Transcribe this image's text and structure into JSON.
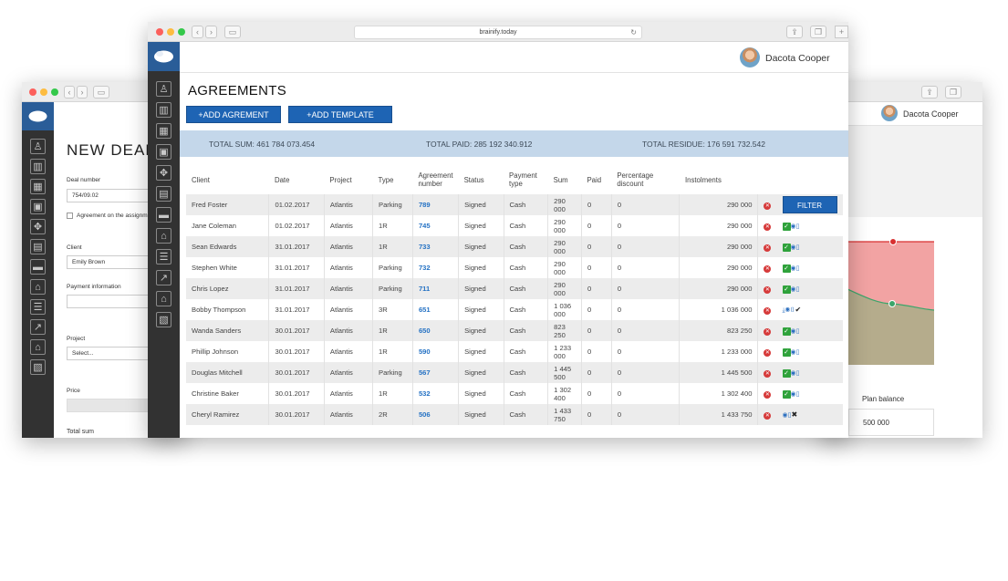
{
  "browser": {
    "url": "brainify.today"
  },
  "user": {
    "name": "Dacota Cooper"
  },
  "left_window": {
    "title": "NEW DEAL",
    "deal_number_label": "Deal number",
    "deal_number_value": "754/09.02",
    "agreement_checkbox_label": "Agreement on the assignm",
    "client_label": "Client",
    "client_value": "Emily Brown",
    "payment_info_label": "Payment information",
    "project_label": "Project",
    "project_placeholder": "Select...",
    "price_label": "Price",
    "total_sum_label": "Total sum"
  },
  "right_window": {
    "plan_balance_label": "Plan balance",
    "plan_balance_value": "500 000"
  },
  "main": {
    "title": "AGREEMENTS",
    "add_agreement": "+ADD AGREMENT",
    "add_template": "+ADD TEMPLATE",
    "total_sum": "TOTAL SUM: 461 784 073.454",
    "total_paid": "TOTAL PAID: 285 192 340.912",
    "total_residue": "TOTAL RESIDUE: 176 591 732.542",
    "filter_label": "FILTER",
    "columns": [
      "Client",
      "Date",
      "Project",
      "Type",
      "Agreement number",
      "Status",
      "Payment type",
      "Sum",
      "Paid",
      "Percentage discount",
      "Instolments"
    ],
    "rows": [
      {
        "client": "Fred Foster",
        "date": "01.02.2017",
        "project": "Atlantis",
        "type": "Parking",
        "number": "789",
        "status": "Signed",
        "payment": "Cash",
        "sum": "290 000",
        "paid": "0",
        "percent": "0",
        "installments": "290 000"
      },
      {
        "client": "Jane Coleman",
        "date": "01.02.2017",
        "project": "Atlantis",
        "type": "1R",
        "number": "745",
        "status": "Signed",
        "payment": "Cash",
        "sum": "290 000",
        "paid": "0",
        "percent": "0",
        "installments": "290 000"
      },
      {
        "client": "Sean Edwards",
        "date": "31.01.2017",
        "project": "Atlantis",
        "type": "1R",
        "number": "733",
        "status": "Signed",
        "payment": "Cash",
        "sum": "290 000",
        "paid": "0",
        "percent": "0",
        "installments": "290 000"
      },
      {
        "client": "Stephen White",
        "date": "31.01.2017",
        "project": "Atlantis",
        "type": "Parking",
        "number": "732",
        "status": "Signed",
        "payment": "Cash",
        "sum": "290 000",
        "paid": "0",
        "percent": "0",
        "installments": "290 000"
      },
      {
        "client": "Chris Lopez",
        "date": "31.01.2017",
        "project": "Atlantis",
        "type": "Parking",
        "number": "711",
        "status": "Signed",
        "payment": "Cash",
        "sum": "290 000",
        "paid": "0",
        "percent": "0",
        "installments": "290 000"
      },
      {
        "client": "Bobby Thompson",
        "date": "31.01.2017",
        "project": "Atlantis",
        "type": "3R",
        "number": "651",
        "status": "Signed",
        "payment": "Cash",
        "sum": "1 036 000",
        "paid": "0",
        "percent": "0",
        "installments": "1 036 000"
      },
      {
        "client": "Wanda Sanders",
        "date": "30.01.2017",
        "project": "Atlantis",
        "type": "1R",
        "number": "650",
        "status": "Signed",
        "payment": "Cash",
        "sum": "823 250",
        "paid": "0",
        "percent": "0",
        "installments": "823 250"
      },
      {
        "client": "Phillip Johnson",
        "date": "30.01.2017",
        "project": "Atlantis",
        "type": "1R",
        "number": "590",
        "status": "Signed",
        "payment": "Cash",
        "sum": "1 233 000",
        "paid": "0",
        "percent": "0",
        "installments": "1 233 000"
      },
      {
        "client": "Douglas Mitchell",
        "date": "30.01.2017",
        "project": "Atlantis",
        "type": "Parking",
        "number": "567",
        "status": "Signed",
        "payment": "Cash",
        "sum": "1 445 500",
        "paid": "0",
        "percent": "0",
        "installments": "1 445 500"
      },
      {
        "client": "Christine Baker",
        "date": "30.01.2017",
        "project": "Atlantis",
        "type": "1R",
        "number": "532",
        "status": "Signed",
        "payment": "Cash",
        "sum": "1 302 400",
        "paid": "0",
        "percent": "0",
        "installments": "1 302 400"
      },
      {
        "client": "Cheryl Ramirez",
        "date": "30.01.2017",
        "project": "Atlantis",
        "type": "2R",
        "number": "506",
        "status": "Signed",
        "payment": "Cash",
        "sum": "1 433 750",
        "paid": "0",
        "percent": "0",
        "installments": "1 433 750"
      }
    ]
  },
  "colors": {
    "brand_blue": "#1e64b4",
    "sidebar_dark": "#323232",
    "totals_bar": "#c4d7ea",
    "danger": "#d63a3a",
    "success": "#2fa23b"
  },
  "icons": [
    "brainify-logo-icon",
    "user-icon",
    "building-icon",
    "chart-icon",
    "eye-icon",
    "trash-icon",
    "check-icon",
    "close-icon",
    "download-icon"
  ]
}
